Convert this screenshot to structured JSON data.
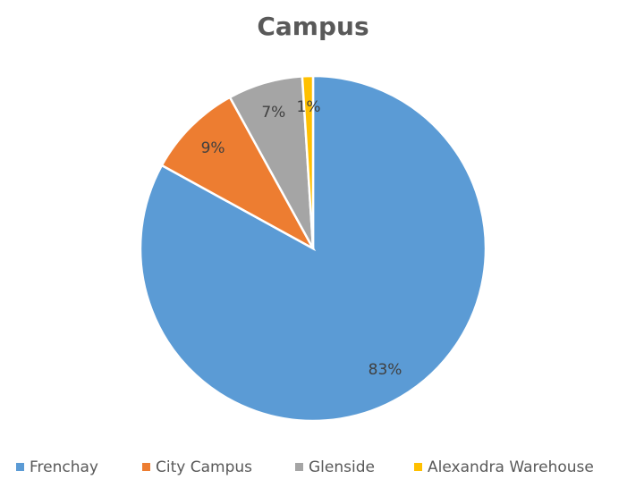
{
  "chart_data": {
    "type": "pie",
    "title": "Campus",
    "categories": [
      "Frenchay",
      "City Campus",
      "Glenside",
      "Alexandra Warehouse"
    ],
    "values": [
      83,
      9,
      7,
      1
    ],
    "value_labels": [
      "83%",
      "9%",
      "7%",
      "1%"
    ],
    "colors": [
      "#5b9bd5",
      "#ed7d31",
      "#a5a5a5",
      "#ffc000"
    ],
    "legend": "bottom"
  }
}
